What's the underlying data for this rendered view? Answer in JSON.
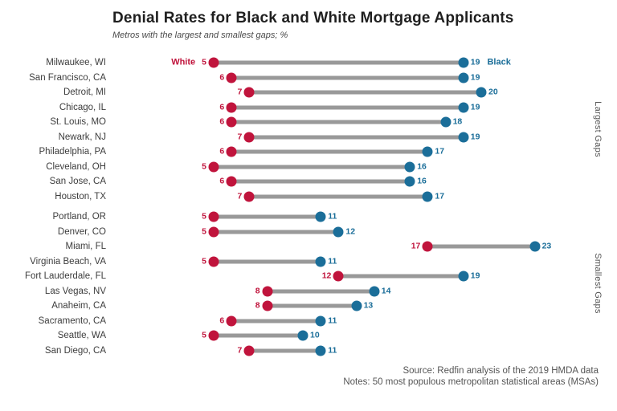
{
  "chart_data": {
    "type": "dumbbell",
    "title": "Denial Rates for Black and White Mortgage Applicants",
    "subtitle": "Metros with the largest and smallest gaps; %",
    "xlim": [
      0,
      25
    ],
    "legend": {
      "white_label": "White",
      "black_label": "Black"
    },
    "colors": {
      "white": "#c0143c",
      "black": "#1b6e99",
      "bar": "#999999"
    },
    "sections": [
      {
        "label": "Largest Gaps",
        "rows": [
          {
            "metro": "Milwaukee, WI",
            "white": 5,
            "black": 19
          },
          {
            "metro": "San Francisco, CA",
            "white": 6,
            "black": 19
          },
          {
            "metro": "Detroit, MI",
            "white": 7,
            "black": 20
          },
          {
            "metro": "Chicago, IL",
            "white": 6,
            "black": 19
          },
          {
            "metro": "St. Louis, MO",
            "white": 6,
            "black": 18
          },
          {
            "metro": "Newark, NJ",
            "white": 7,
            "black": 19
          },
          {
            "metro": "Philadelphia, PA",
            "white": 6,
            "black": 17
          },
          {
            "metro": "Cleveland, OH",
            "white": 5,
            "black": 16
          },
          {
            "metro": "San Jose, CA",
            "white": 6,
            "black": 16
          },
          {
            "metro": "Houston, TX",
            "white": 7,
            "black": 17
          }
        ]
      },
      {
        "label": "Smallest Gaps",
        "rows": [
          {
            "metro": "Portland, OR",
            "white": 5,
            "black": 11
          },
          {
            "metro": "Denver, CO",
            "white": 5,
            "black": 12
          },
          {
            "metro": "Miami, FL",
            "white": 17,
            "black": 23
          },
          {
            "metro": "Virginia Beach, VA",
            "white": 5,
            "black": 11
          },
          {
            "metro": "Fort Lauderdale, FL",
            "white": 12,
            "black": 19
          },
          {
            "metro": "Las Vegas, NV",
            "white": 8,
            "black": 14
          },
          {
            "metro": "Anaheim, CA",
            "white": 8,
            "black": 13
          },
          {
            "metro": "Sacramento, CA",
            "white": 6,
            "black": 11
          },
          {
            "metro": "Seattle, WA",
            "white": 5,
            "black": 10
          },
          {
            "metro": "San Diego, CA",
            "white": 7,
            "black": 11
          }
        ]
      }
    ],
    "footer": {
      "source": "Source: Redfin analysis of the 2019 HMDA data",
      "notes": "Notes: 50 most populous metropolitan statistical areas (MSAs)"
    }
  }
}
